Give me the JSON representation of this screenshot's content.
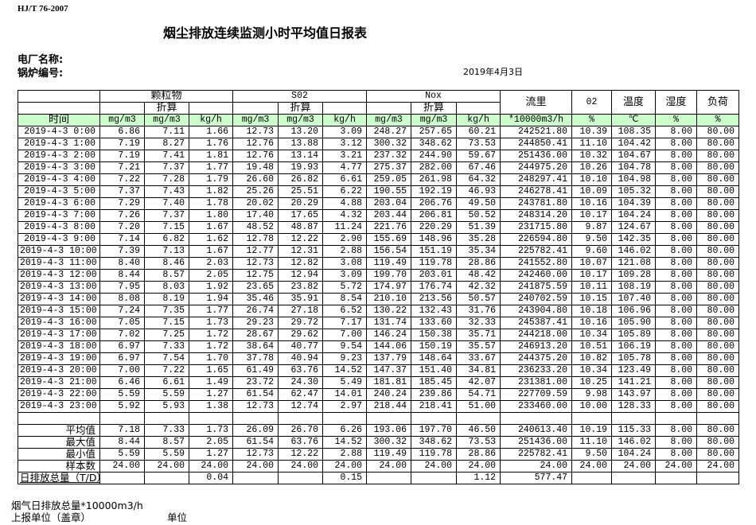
{
  "header": {
    "standard": "HJ/T  76-2007",
    "title": "烟尘排放连续监测小时平均值日报表",
    "plant_label": "电厂名称:",
    "boiler_label": "锅炉编号:",
    "date": "2019年4月3日"
  },
  "table": {
    "groups": {
      "pm": "颗粒物",
      "so2": "S02",
      "nox": "Nox",
      "flow": "流里",
      "o2": "02",
      "temp": "温度",
      "humidity": "湿度",
      "load": "负荷"
    },
    "converted_label": "折算",
    "time_label": "时间",
    "units": [
      "mg/m3",
      "mg/m3",
      "kg/h",
      "mg/m3",
      "mg/m3",
      "kg/h",
      "mg/m3",
      "mg/m3",
      "kg/h",
      "*10000m3/h",
      "%",
      "℃",
      "%",
      "%"
    ],
    "rows": [
      {
        "time": "2019-4-3 0:00",
        "values": [
          "6.86",
          "7.11",
          "1.66",
          "12.73",
          "13.20",
          "3.09",
          "248.27",
          "257.65",
          "60.21",
          "242521.80",
          "10.39",
          "108.35",
          "8.00",
          "80.00"
        ]
      },
      {
        "time": "2019-4-3 1:00",
        "values": [
          "7.19",
          "8.27",
          "1.76",
          "12.76",
          "13.88",
          "3.12",
          "300.32",
          "348.62",
          "73.53",
          "244850.41",
          "11.10",
          "104.42",
          "8.00",
          "80.00"
        ]
      },
      {
        "time": "2019-4-3 2:00",
        "values": [
          "7.19",
          "7.41",
          "1.81",
          "12.76",
          "13.14",
          "3.21",
          "237.32",
          "244.90",
          "59.67",
          "251436.00",
          "10.32",
          "104.67",
          "8.00",
          "80.00"
        ]
      },
      {
        "time": "2019-4-3 3:00",
        "values": [
          "7.21",
          "7.37",
          "1.77",
          "19.48",
          "19.93",
          "4.77",
          "275.37",
          "282.00",
          "67.46",
          "244975.20",
          "10.26",
          "104.78",
          "8.00",
          "80.00"
        ]
      },
      {
        "time": "2019-4-3 4:00",
        "values": [
          "7.22",
          "7.28",
          "1.79",
          "26.60",
          "26.82",
          "6.61",
          "259.05",
          "261.98",
          "64.32",
          "248297.41",
          "10.10",
          "104.98",
          "8.00",
          "80.00"
        ]
      },
      {
        "time": "2019-4-3 5:00",
        "values": [
          "7.37",
          "7.43",
          "1.82",
          "25.26",
          "25.51",
          "6.22",
          "190.55",
          "192.19",
          "46.93",
          "246278.41",
          "10.09",
          "105.32",
          "8.00",
          "80.00"
        ]
      },
      {
        "time": "2019-4-3 6:00",
        "values": [
          "7.29",
          "7.40",
          "1.78",
          "20.02",
          "20.29",
          "4.88",
          "203.04",
          "206.76",
          "49.50",
          "243781.80",
          "10.16",
          "104.39",
          "8.00",
          "80.00"
        ]
      },
      {
        "time": "2019-4-3 7:00",
        "values": [
          "7.26",
          "7.37",
          "1.80",
          "17.40",
          "17.65",
          "4.32",
          "203.44",
          "206.81",
          "50.52",
          "248314.20",
          "10.17",
          "104.24",
          "8.00",
          "80.00"
        ]
      },
      {
        "time": "2019-4-3 8:00",
        "values": [
          "7.20",
          "7.15",
          "1.67",
          "48.52",
          "48.87",
          "11.24",
          "221.76",
          "220.29",
          "51.39",
          "231715.80",
          "9.87",
          "124.67",
          "8.00",
          "80.00"
        ]
      },
      {
        "time": "2019-4-3 9:00",
        "values": [
          "7.14",
          "6.82",
          "1.62",
          "12.78",
          "12.22",
          "2.90",
          "155.69",
          "148.96",
          "35.28",
          "226594.80",
          "9.50",
          "142.35",
          "8.00",
          "80.00"
        ]
      },
      {
        "time": "2019-4-3 10:00",
        "values": [
          "7.39",
          "7.13",
          "1.67",
          "12.77",
          "12.31",
          "2.88",
          "156.54",
          "151.19",
          "35.34",
          "225782.41",
          "9.60",
          "146.02",
          "8.00",
          "80.00"
        ]
      },
      {
        "time": "2019-4-3 11:00",
        "values": [
          "8.40",
          "8.46",
          "2.03",
          "12.73",
          "12.82",
          "3.08",
          "119.49",
          "119.78",
          "28.86",
          "241552.80",
          "10.07",
          "121.08",
          "8.00",
          "80.00"
        ]
      },
      {
        "time": "2019-4-3 12:00",
        "values": [
          "8.44",
          "8.57",
          "2.05",
          "12.75",
          "12.94",
          "3.09",
          "199.70",
          "203.01",
          "48.42",
          "242460.00",
          "10.17",
          "109.28",
          "8.00",
          "80.00"
        ]
      },
      {
        "time": "2019-4-3 13:00",
        "values": [
          "7.95",
          "8.03",
          "1.92",
          "23.65",
          "23.82",
          "5.72",
          "174.97",
          "176.74",
          "42.32",
          "241875.59",
          "10.11",
          "108.19",
          "8.00",
          "80.00"
        ]
      },
      {
        "time": "2019-4-3 14:00",
        "values": [
          "8.08",
          "8.19",
          "1.94",
          "35.46",
          "35.91",
          "8.54",
          "210.10",
          "213.56",
          "50.57",
          "240702.59",
          "10.15",
          "107.40",
          "8.00",
          "80.00"
        ]
      },
      {
        "time": "2019-4-3 15:00",
        "values": [
          "7.24",
          "7.35",
          "1.77",
          "26.74",
          "27.18",
          "6.52",
          "130.22",
          "132.43",
          "31.76",
          "243904.80",
          "10.18",
          "106.96",
          "8.00",
          "80.00"
        ]
      },
      {
        "time": "2019-4-3 16:00",
        "values": [
          "7.05",
          "7.15",
          "1.73",
          "29.23",
          "29.72",
          "7.17",
          "131.74",
          "133.60",
          "32.33",
          "245387.41",
          "10.16",
          "105.90",
          "8.00",
          "80.00"
        ]
      },
      {
        "time": "2019-4-3 17:00",
        "values": [
          "7.02",
          "7.25",
          "1.72",
          "28.67",
          "29.62",
          "7.00",
          "146.24",
          "150.38",
          "35.71",
          "244218.00",
          "10.34",
          "105.89",
          "8.00",
          "80.00"
        ]
      },
      {
        "time": "2019-4-3 18:00",
        "values": [
          "6.97",
          "7.33",
          "1.72",
          "38.64",
          "40.77",
          "9.54",
          "144.06",
          "150.19",
          "35.57",
          "246913.20",
          "10.51",
          "106.19",
          "8.00",
          "80.00"
        ]
      },
      {
        "time": "2019-4-3 19:00",
        "values": [
          "6.97",
          "7.54",
          "1.70",
          "37.78",
          "40.94",
          "9.23",
          "137.79",
          "148.64",
          "33.67",
          "244375.20",
          "10.82",
          "105.78",
          "8.00",
          "80.00"
        ]
      },
      {
        "time": "2019-4-3 20:00",
        "values": [
          "7.00",
          "7.22",
          "1.65",
          "61.49",
          "63.76",
          "14.52",
          "147.37",
          "151.40",
          "34.81",
          "236233.20",
          "10.34",
          "123.49",
          "8.00",
          "80.00"
        ]
      },
      {
        "time": "2019-4-3 21:00",
        "values": [
          "6.46",
          "6.61",
          "1.49",
          "23.72",
          "24.30",
          "5.49",
          "181.81",
          "185.45",
          "42.07",
          "231381.00",
          "10.25",
          "141.21",
          "8.00",
          "80.00"
        ]
      },
      {
        "time": "2019-4-3 22:00",
        "values": [
          "5.59",
          "5.59",
          "1.27",
          "61.54",
          "62.47",
          "14.01",
          "240.24",
          "239.86",
          "54.71",
          "227709.59",
          "9.98",
          "143.97",
          "8.00",
          "80.00"
        ]
      },
      {
        "time": "2019-4-3 23:00",
        "values": [
          "5.92",
          "5.93",
          "1.38",
          "12.73",
          "12.74",
          "2.97",
          "218.44",
          "218.41",
          "51.00",
          "233460.00",
          "10.00",
          "128.33",
          "8.00",
          "80.00"
        ]
      }
    ],
    "summary": [
      {
        "label": "平均值",
        "values": [
          "7.18",
          "7.33",
          "1.73",
          "26.09",
          "26.70",
          "6.26",
          "193.06",
          "197.70",
          "46.50",
          "240613.40",
          "10.19",
          "115.33",
          "8.00",
          "80.00"
        ]
      },
      {
        "label": "最大值",
        "values": [
          "8.44",
          "8.57",
          "2.05",
          "61.54",
          "63.76",
          "14.52",
          "300.32",
          "348.62",
          "73.53",
          "251436.00",
          "11.10",
          "146.02",
          "8.00",
          "80.00"
        ]
      },
      {
        "label": "最小值",
        "values": [
          "5.59",
          "5.59",
          "1.27",
          "12.73",
          "12.22",
          "2.88",
          "119.49",
          "119.78",
          "28.86",
          "225782.41",
          "9.50",
          "104.24",
          "8.00",
          "80.00"
        ]
      },
      {
        "label": "样本数",
        "values": [
          "24.00",
          "24.00",
          "24.00",
          "24.00",
          "24.00",
          "24.00",
          "24.00",
          "24.00",
          "24.00",
          "24.00",
          "24.00",
          "24.00",
          "24.00",
          "24.00"
        ]
      }
    ],
    "total": {
      "label": "日排放总量（T/D）",
      "values": [
        "",
        "",
        "0.04",
        "",
        "",
        "0.15",
        "",
        "",
        "1.12",
        "577.47",
        "",
        "",
        "",
        ""
      ]
    }
  },
  "footer": {
    "flue_gas_total": "烟气日排放总量*10000m3/h",
    "reporting_unit": "上报单位（盖章）",
    "unit": "单位"
  }
}
